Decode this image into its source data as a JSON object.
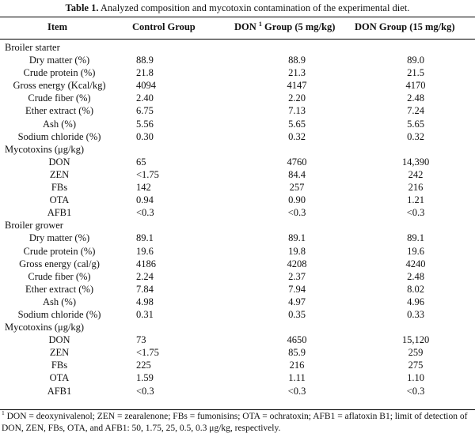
{
  "caption": {
    "label": "Table 1.",
    "text": "Analyzed composition and mycotoxin contamination of the experimental diet."
  },
  "headers": {
    "item": "Item",
    "control": "Control Group",
    "don5_prefix": "DON",
    "don5_sup": "1",
    "don5_suffix": "Group (5 mg/kg)",
    "don15": "DON Group (15 mg/kg)"
  },
  "rows": [
    {
      "type": "section",
      "label": "Broiler starter"
    },
    {
      "type": "data",
      "label": "Dry matter (%)",
      "control": "88.9",
      "don5": "88.9",
      "don15": "89.0"
    },
    {
      "type": "data",
      "label": "Crude protein (%)",
      "control": "21.8",
      "don5": "21.3",
      "don15": "21.5"
    },
    {
      "type": "data",
      "label": "Gross energy (Kcal/kg)",
      "control": "4094",
      "don5": "4147",
      "don15": "4170"
    },
    {
      "type": "data",
      "label": "Crude fiber (%)",
      "control": "2.40",
      "don5": "2.20",
      "don15": "2.48"
    },
    {
      "type": "data",
      "label": "Ether extract (%)",
      "control": "6.75",
      "don5": "7.13",
      "don15": "7.24"
    },
    {
      "type": "data",
      "label": "Ash (%)",
      "control": "5.56",
      "don5": "5.65",
      "don15": "5.65"
    },
    {
      "type": "data",
      "label": "Sodium chloride (%)",
      "control": "0.30",
      "don5": "0.32",
      "don15": "0.32"
    },
    {
      "type": "section",
      "label": "Mycotoxins (μg/kg)"
    },
    {
      "type": "data",
      "label": "DON",
      "control": "65",
      "don5": "4760",
      "don15": "14,390"
    },
    {
      "type": "data",
      "label": "ZEN",
      "control": "<1.75",
      "don5": "84.4",
      "don15": "242"
    },
    {
      "type": "data",
      "label": "FBs",
      "control": "142",
      "don5": "257",
      "don15": "216"
    },
    {
      "type": "data",
      "label": "OTA",
      "control": "0.94",
      "don5": "0.90",
      "don15": "1.21"
    },
    {
      "type": "data",
      "label": "AFB1",
      "control": "<0.3",
      "don5": "<0.3",
      "don15": "<0.3"
    },
    {
      "type": "section",
      "label": "Broiler grower"
    },
    {
      "type": "data",
      "label": "Dry matter (%)",
      "control": "89.1",
      "don5": "89.1",
      "don15": "89.1"
    },
    {
      "type": "data",
      "label": "Crude protein (%)",
      "control": "19.6",
      "don5": "19.8",
      "don15": "19.6"
    },
    {
      "type": "data",
      "label": "Gross energy (cal/g)",
      "control": "4186",
      "don5": "4208",
      "don15": "4240"
    },
    {
      "type": "data",
      "label": "Crude fiber (%)",
      "control": "2.24",
      "don5": "2.37",
      "don15": "2.48"
    },
    {
      "type": "data",
      "label": "Ether extract (%)",
      "control": "7.84",
      "don5": "7.94",
      "don15": "8.02"
    },
    {
      "type": "data",
      "label": "Ash (%)",
      "control": "4.98",
      "don5": "4.97",
      "don15": "4.96"
    },
    {
      "type": "data",
      "label": "Sodium chloride (%)",
      "control": "0.31",
      "don5": "0.35",
      "don15": "0.33"
    },
    {
      "type": "section",
      "label": "Mycotoxins (μg/kg)"
    },
    {
      "type": "data",
      "label": "DON",
      "control": "73",
      "don5": "4650",
      "don15": "15,120"
    },
    {
      "type": "data",
      "label": "ZEN",
      "control": "<1.75",
      "don5": "85.9",
      "don15": "259"
    },
    {
      "type": "data",
      "label": "FBs",
      "control": "225",
      "don5": "216",
      "don15": "275"
    },
    {
      "type": "data",
      "label": "OTA",
      "control": "1.59",
      "don5": "1.11",
      "don15": "1.10"
    },
    {
      "type": "data",
      "label": "AFB1",
      "control": "<0.3",
      "don5": "<0.3",
      "don15": "<0.3"
    }
  ],
  "footnote": {
    "marker": "1",
    "text": "DON = deoxynivalenol; ZEN = zearalenone; FBs = fumonisins; OTA = ochratoxin; AFB1 = aflatoxin B1; limit of detection of DON, ZEN, FBs, OTA, and AFB1: 50, 1.75, 25, 0.5, 0.3 μg/kg, respectively."
  }
}
